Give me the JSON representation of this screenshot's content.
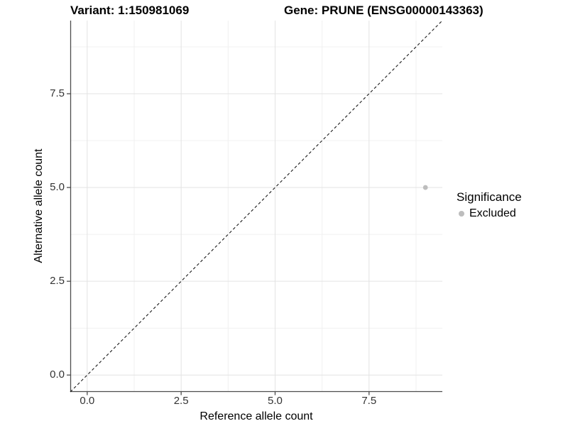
{
  "chart_data": {
    "type": "scatter",
    "title_left": "Variant: 1:150981069",
    "title_right": "Gene: PRUNE (ENSG00000143363)",
    "xlabel": "Reference allele count",
    "ylabel": "Alternative allele count",
    "xlim": [
      -0.45,
      9.45
    ],
    "ylim": [
      -0.45,
      9.45
    ],
    "x_major_ticks": [
      0,
      2.5,
      5,
      7.5
    ],
    "x_tick_labels": [
      "0.0",
      "2.5",
      "5.0",
      "7.5"
    ],
    "y_major_ticks": [
      0,
      2.5,
      5,
      7.5
    ],
    "y_tick_labels": [
      "0.0",
      "2.5",
      "5.0",
      "7.5"
    ],
    "x_minor_ticks": [
      1.25,
      3.75,
      6.25,
      8.75
    ],
    "y_minor_ticks": [
      1.25,
      3.75,
      6.25,
      8.75
    ],
    "grid": true,
    "reference_line": {
      "slope": 1,
      "intercept": 0,
      "style": "dashed"
    },
    "series": [
      {
        "name": "Excluded",
        "points": [
          {
            "x": 9,
            "y": 5
          }
        ]
      }
    ],
    "legend": {
      "position": "right",
      "title": "Significance",
      "items": [
        {
          "label": "Excluded"
        }
      ]
    },
    "colors": {
      "point": "#bdbdbd",
      "legend_key": "#bdbdbd",
      "grid_major": "#e3e3e3",
      "grid_minor": "#f0f0f0",
      "axis_line": "#4d4d4d",
      "tick_mark": "#4d4d4d",
      "reference_line": "#1a1a1a",
      "title_text": "#000000",
      "axis_text": "#333333"
    }
  }
}
